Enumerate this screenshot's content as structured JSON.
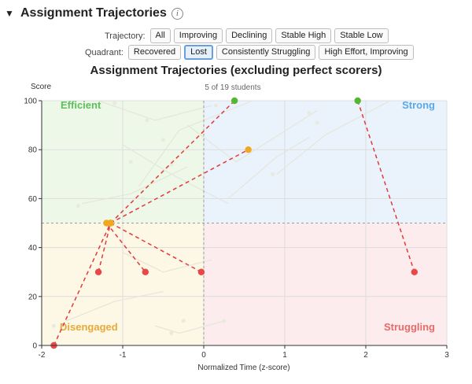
{
  "header": {
    "title": "Assignment Trajectories",
    "collapse_glyph": "▼",
    "info_glyph": "i"
  },
  "filters": {
    "trajectory": {
      "label": "Trajectory:",
      "options": [
        "All",
        "Improving",
        "Declining",
        "Stable High",
        "Stable Low"
      ],
      "active": null
    },
    "quadrant": {
      "label": "Quadrant:",
      "options": [
        "Recovered",
        "Lost",
        "Consistently Struggling",
        "High Effort, Improving"
      ],
      "active": "Lost"
    }
  },
  "chart_data": {
    "type": "scatter",
    "title": "Assignment Trajectories (excluding perfect scorers)",
    "subtitle": "5 of 19 students",
    "xlabel": "Normalized Time (z-score)",
    "ylabel": "Score",
    "xlim": [
      -2,
      3
    ],
    "ylim": [
      0,
      100
    ],
    "xticks": [
      -2,
      -1,
      0,
      1,
      2,
      3
    ],
    "yticks": [
      0,
      20,
      40,
      60,
      80,
      100
    ],
    "thresholds": {
      "x": 0,
      "y": 50
    },
    "quadrants": [
      {
        "name": "Efficient",
        "color": "#5cc05c",
        "bg": "#eef8e8"
      },
      {
        "name": "Strong",
        "color": "#5aa8e8",
        "bg": "#eaf3fc"
      },
      {
        "name": "Disengaged",
        "color": "#e8a93a",
        "bg": "#fdf7e6"
      },
      {
        "name": "Struggling",
        "color": "#e86a6a",
        "bg": "#fdecee"
      }
    ],
    "series": [
      {
        "start": [
          -1.15,
          50
        ],
        "end": [
          0.38,
          100
        ],
        "start_color": "#f0a820",
        "end_color": "#52b830"
      },
      {
        "start": [
          -1.15,
          50
        ],
        "end": [
          0.55,
          80
        ],
        "start_color": "#f0a820",
        "end_color": "#f0a820"
      },
      {
        "start": [
          -1.15,
          50
        ],
        "end": [
          -0.03,
          30
        ],
        "start_color": "#f0a820",
        "end_color": "#e84848"
      },
      {
        "start": [
          -1.2,
          50
        ],
        "end": [
          -0.72,
          30
        ],
        "start_color": "#f0a820",
        "end_color": "#e84848"
      },
      {
        "start": [
          -1.3,
          30
        ],
        "end": [
          -1.15,
          50
        ],
        "start_color": "#e84848",
        "end_color": "#f0a820"
      },
      {
        "start": [
          -1.85,
          0
        ],
        "end": [
          -1.15,
          50
        ],
        "start_color": "#e84848",
        "end_color": "#f0a820"
      },
      {
        "start": [
          1.9,
          100
        ],
        "end": [
          2.6,
          30
        ],
        "start_color": "#52b830",
        "end_color": "#e84848"
      }
    ],
    "faded_traces": [
      [
        [
          -1.3,
          100
        ],
        [
          -0.6,
          92
        ],
        [
          0.1,
          98
        ]
      ],
      [
        [
          -0.8,
          65
        ],
        [
          -0.3,
          88
        ],
        [
          0.6,
          100
        ]
      ],
      [
        [
          -0.2,
          90
        ],
        [
          0.4,
          75
        ],
        [
          1.4,
          96
        ]
      ],
      [
        [
          0.9,
          70
        ],
        [
          1.5,
          86
        ],
        [
          2.3,
          100
        ]
      ],
      [
        [
          -1.0,
          82
        ],
        [
          -0.4,
          70
        ],
        [
          0.3,
          58
        ]
      ],
      [
        [
          -1.5,
          58
        ],
        [
          -0.9,
          62
        ],
        [
          -0.2,
          73
        ]
      ],
      [
        [
          -1.7,
          10
        ],
        [
          -1.1,
          18
        ],
        [
          -0.5,
          22
        ]
      ],
      [
        [
          -0.6,
          8
        ],
        [
          -0.3,
          5
        ],
        [
          0.25,
          10
        ]
      ],
      [
        [
          -1.0,
          38
        ],
        [
          -0.5,
          30
        ],
        [
          0.1,
          35
        ]
      ],
      [
        [
          0.3,
          60
        ],
        [
          0.9,
          77
        ],
        [
          1.3,
          85
        ]
      ]
    ],
    "faded_points": [
      [
        -1.1,
        99
      ],
      [
        -0.7,
        92
      ],
      [
        -0.5,
        84
      ],
      [
        -0.4,
        74
      ],
      [
        0.15,
        98
      ],
      [
        1.4,
        91
      ],
      [
        0.85,
        70
      ],
      [
        -1.55,
        57
      ],
      [
        -0.75,
        60
      ],
      [
        -0.25,
        10
      ],
      [
        -0.4,
        5
      ],
      [
        0.25,
        10
      ],
      [
        -1.85,
        8
      ],
      [
        1.3,
        95
      ],
      [
        -0.9,
        75
      ]
    ]
  }
}
